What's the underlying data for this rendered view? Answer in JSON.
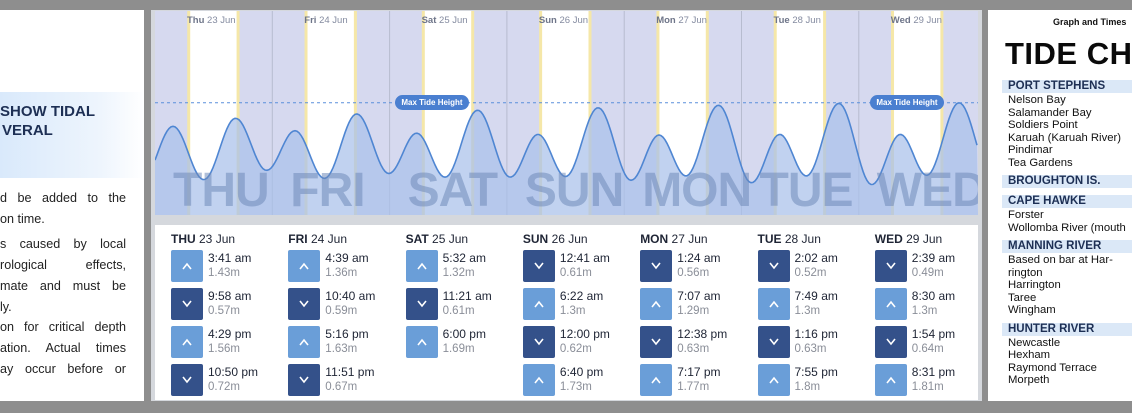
{
  "left_panel": {
    "heading_lines": [
      "SHOW TIDAL",
      "VERAL"
    ],
    "para1": [
      "d be added to the",
      "on time."
    ],
    "para2": [
      "s caused by local",
      "rological   effects,",
      "mate and must be",
      "ly."
    ],
    "para3": [
      "on for critical depth",
      "ation. Actual times",
      "ay occur before or"
    ]
  },
  "chart": {
    "day_headers": [
      {
        "abbr": "Thu",
        "date": "23 Jun"
      },
      {
        "abbr": "Fri",
        "date": "24 Jun"
      },
      {
        "abbr": "Sat",
        "date": "25 Jun"
      },
      {
        "abbr": "Sun",
        "date": "26 Jun"
      },
      {
        "abbr": "Mon",
        "date": "27 Jun"
      },
      {
        "abbr": "Tue",
        "date": "28 Jun"
      },
      {
        "abbr": "Wed",
        "date": "29 Jun"
      }
    ],
    "big_day_labels": [
      "THU",
      "FRI",
      "SAT",
      "SUN",
      "MON",
      "TUE",
      "WED"
    ],
    "max_tide_label": "Max Tide Height",
    "colors": {
      "night": "#d6d9ef",
      "day": "#ffffff",
      "wave_fill": "#a9c1ea",
      "wave_line": "#4f86d2",
      "dashed": "#5a8fdc"
    }
  },
  "chart_data": {
    "type": "area",
    "title": "",
    "xlabel": "",
    "ylabel": "",
    "series": [
      {
        "values": [
          {
            "day": "Thu 23 Jun",
            "time": "3:41 am",
            "height_m": 1.43
          },
          {
            "day": "Thu 23 Jun",
            "time": "9:58 am",
            "height_m": 0.57
          },
          {
            "day": "Thu 23 Jun",
            "time": "4:29 pm",
            "height_m": 1.56
          },
          {
            "day": "Thu 23 Jun",
            "time": "10:50 pm",
            "height_m": 0.72
          },
          {
            "day": "Fri 24 Jun",
            "time": "4:39 am",
            "height_m": 1.36
          },
          {
            "day": "Fri 24 Jun",
            "time": "10:40 am",
            "height_m": 0.59
          },
          {
            "day": "Fri 24 Jun",
            "time": "5:16 pm",
            "height_m": 1.63
          },
          {
            "day": "Fri 24 Jun",
            "time": "11:51 pm",
            "height_m": 0.67
          },
          {
            "day": "Sat 25 Jun",
            "time": "5:32 am",
            "height_m": 1.32
          },
          {
            "day": "Sat 25 Jun",
            "time": "11:21 am",
            "height_m": 0.61
          },
          {
            "day": "Sat 25 Jun",
            "time": "6:00 pm",
            "height_m": 1.69
          },
          {
            "day": "Sun 26 Jun",
            "time": "12:41 am",
            "height_m": 0.61
          },
          {
            "day": "Sun 26 Jun",
            "time": "6:22 am",
            "height_m": 1.3
          },
          {
            "day": "Sun 26 Jun",
            "time": "12:00 pm",
            "height_m": 0.62
          },
          {
            "day": "Sun 26 Jun",
            "time": "6:40 pm",
            "height_m": 1.73
          },
          {
            "day": "Mon 27 Jun",
            "time": "1:24 am",
            "height_m": 0.56
          },
          {
            "day": "Mon 27 Jun",
            "time": "7:07 am",
            "height_m": 1.29
          },
          {
            "day": "Mon 27 Jun",
            "time": "12:38 pm",
            "height_m": 0.63
          },
          {
            "day": "Mon 27 Jun",
            "time": "7:17 pm",
            "height_m": 1.77
          },
          {
            "day": "Tue 28 Jun",
            "time": "2:02 am",
            "height_m": 0.52
          },
          {
            "day": "Tue 28 Jun",
            "time": "7:49 am",
            "height_m": 1.3
          },
          {
            "day": "Tue 28 Jun",
            "time": "1:16 pm",
            "height_m": 0.63
          },
          {
            "day": "Tue 28 Jun",
            "time": "7:55 pm",
            "height_m": 1.8
          },
          {
            "day": "Wed 29 Jun",
            "time": "2:39 am",
            "height_m": 0.49
          },
          {
            "day": "Wed 29 Jun",
            "time": "8:30 am",
            "height_m": 1.3
          },
          {
            "day": "Wed 29 Jun",
            "time": "1:54 pm",
            "height_m": 0.64
          },
          {
            "day": "Wed 29 Jun",
            "time": "8:31 pm",
            "height_m": 1.81
          }
        ]
      }
    ],
    "max_tide_height_m": 1.81,
    "ylim": [
      0,
      2.2
    ],
    "grid": false
  },
  "table": {
    "days": [
      {
        "abbr": "THU",
        "date": "23 Jun",
        "tides": [
          {
            "type": "high",
            "time": "3:41 am",
            "height": "1.43m"
          },
          {
            "type": "low",
            "time": "9:58 am",
            "height": "0.57m"
          },
          {
            "type": "high",
            "time": "4:29 pm",
            "height": "1.56m"
          },
          {
            "type": "low",
            "time": "10:50 pm",
            "height": "0.72m"
          }
        ]
      },
      {
        "abbr": "FRI",
        "date": "24 Jun",
        "tides": [
          {
            "type": "high",
            "time": "4:39 am",
            "height": "1.36m"
          },
          {
            "type": "low",
            "time": "10:40 am",
            "height": "0.59m"
          },
          {
            "type": "high",
            "time": "5:16 pm",
            "height": "1.63m"
          },
          {
            "type": "low",
            "time": "11:51 pm",
            "height": "0.67m"
          }
        ]
      },
      {
        "abbr": "SAT",
        "date": "25 Jun",
        "tides": [
          {
            "type": "high",
            "time": "5:32 am",
            "height": "1.32m"
          },
          {
            "type": "low",
            "time": "11:21 am",
            "height": "0.61m"
          },
          {
            "type": "high",
            "time": "6:00 pm",
            "height": "1.69m"
          }
        ]
      },
      {
        "abbr": "SUN",
        "date": "26 Jun",
        "tides": [
          {
            "type": "low",
            "time": "12:41 am",
            "height": "0.61m"
          },
          {
            "type": "high",
            "time": "6:22 am",
            "height": "1.3m"
          },
          {
            "type": "low",
            "time": "12:00 pm",
            "height": "0.62m"
          },
          {
            "type": "high",
            "time": "6:40 pm",
            "height": "1.73m"
          }
        ]
      },
      {
        "abbr": "MON",
        "date": "27 Jun",
        "tides": [
          {
            "type": "low",
            "time": "1:24 am",
            "height": "0.56m"
          },
          {
            "type": "high",
            "time": "7:07 am",
            "height": "1.29m"
          },
          {
            "type": "low",
            "time": "12:38 pm",
            "height": "0.63m"
          },
          {
            "type": "high",
            "time": "7:17 pm",
            "height": "1.77m"
          }
        ]
      },
      {
        "abbr": "TUE",
        "date": "28 Jun",
        "tides": [
          {
            "type": "low",
            "time": "2:02 am",
            "height": "0.52m"
          },
          {
            "type": "high",
            "time": "7:49 am",
            "height": "1.3m"
          },
          {
            "type": "low",
            "time": "1:16 pm",
            "height": "0.63m"
          },
          {
            "type": "high",
            "time": "7:55 pm",
            "height": "1.8m"
          }
        ]
      },
      {
        "abbr": "WED",
        "date": "29 Jun",
        "tides": [
          {
            "type": "low",
            "time": "2:39 am",
            "height": "0.49m"
          },
          {
            "type": "high",
            "time": "8:30 am",
            "height": "1.3m"
          },
          {
            "type": "low",
            "time": "1:54 pm",
            "height": "0.64m"
          },
          {
            "type": "high",
            "time": "8:31 pm",
            "height": "1.81m"
          }
        ]
      }
    ],
    "colors": {
      "high_icon": "#6a9ed8",
      "low_icon": "#34518a"
    }
  },
  "right_panel": {
    "top_label": "Graph and Times",
    "title": "TIDE CH",
    "regions": [
      {
        "name": "PORT STEPHENS",
        "locations": [
          "Nelson Bay",
          "Salamander Bay",
          "Soldiers Point",
          "Karuah (Karuah River)",
          "Pindimar",
          "Tea Gardens"
        ]
      },
      {
        "name": "BROUGHTON IS.",
        "locations": []
      },
      {
        "name": "CAPE HAWKE",
        "locations": [
          "Forster",
          "Wollomba River (mouth"
        ]
      },
      {
        "name": "MANNING RIVER",
        "locations": [
          "Based on bar at Har-",
          "rington",
          "Harrington",
          "Taree",
          "Wingham"
        ]
      },
      {
        "name": "HUNTER RIVER",
        "locations": [
          "Newcastle",
          "Hexham",
          "Raymond Terrace",
          "Morpeth"
        ]
      }
    ]
  }
}
